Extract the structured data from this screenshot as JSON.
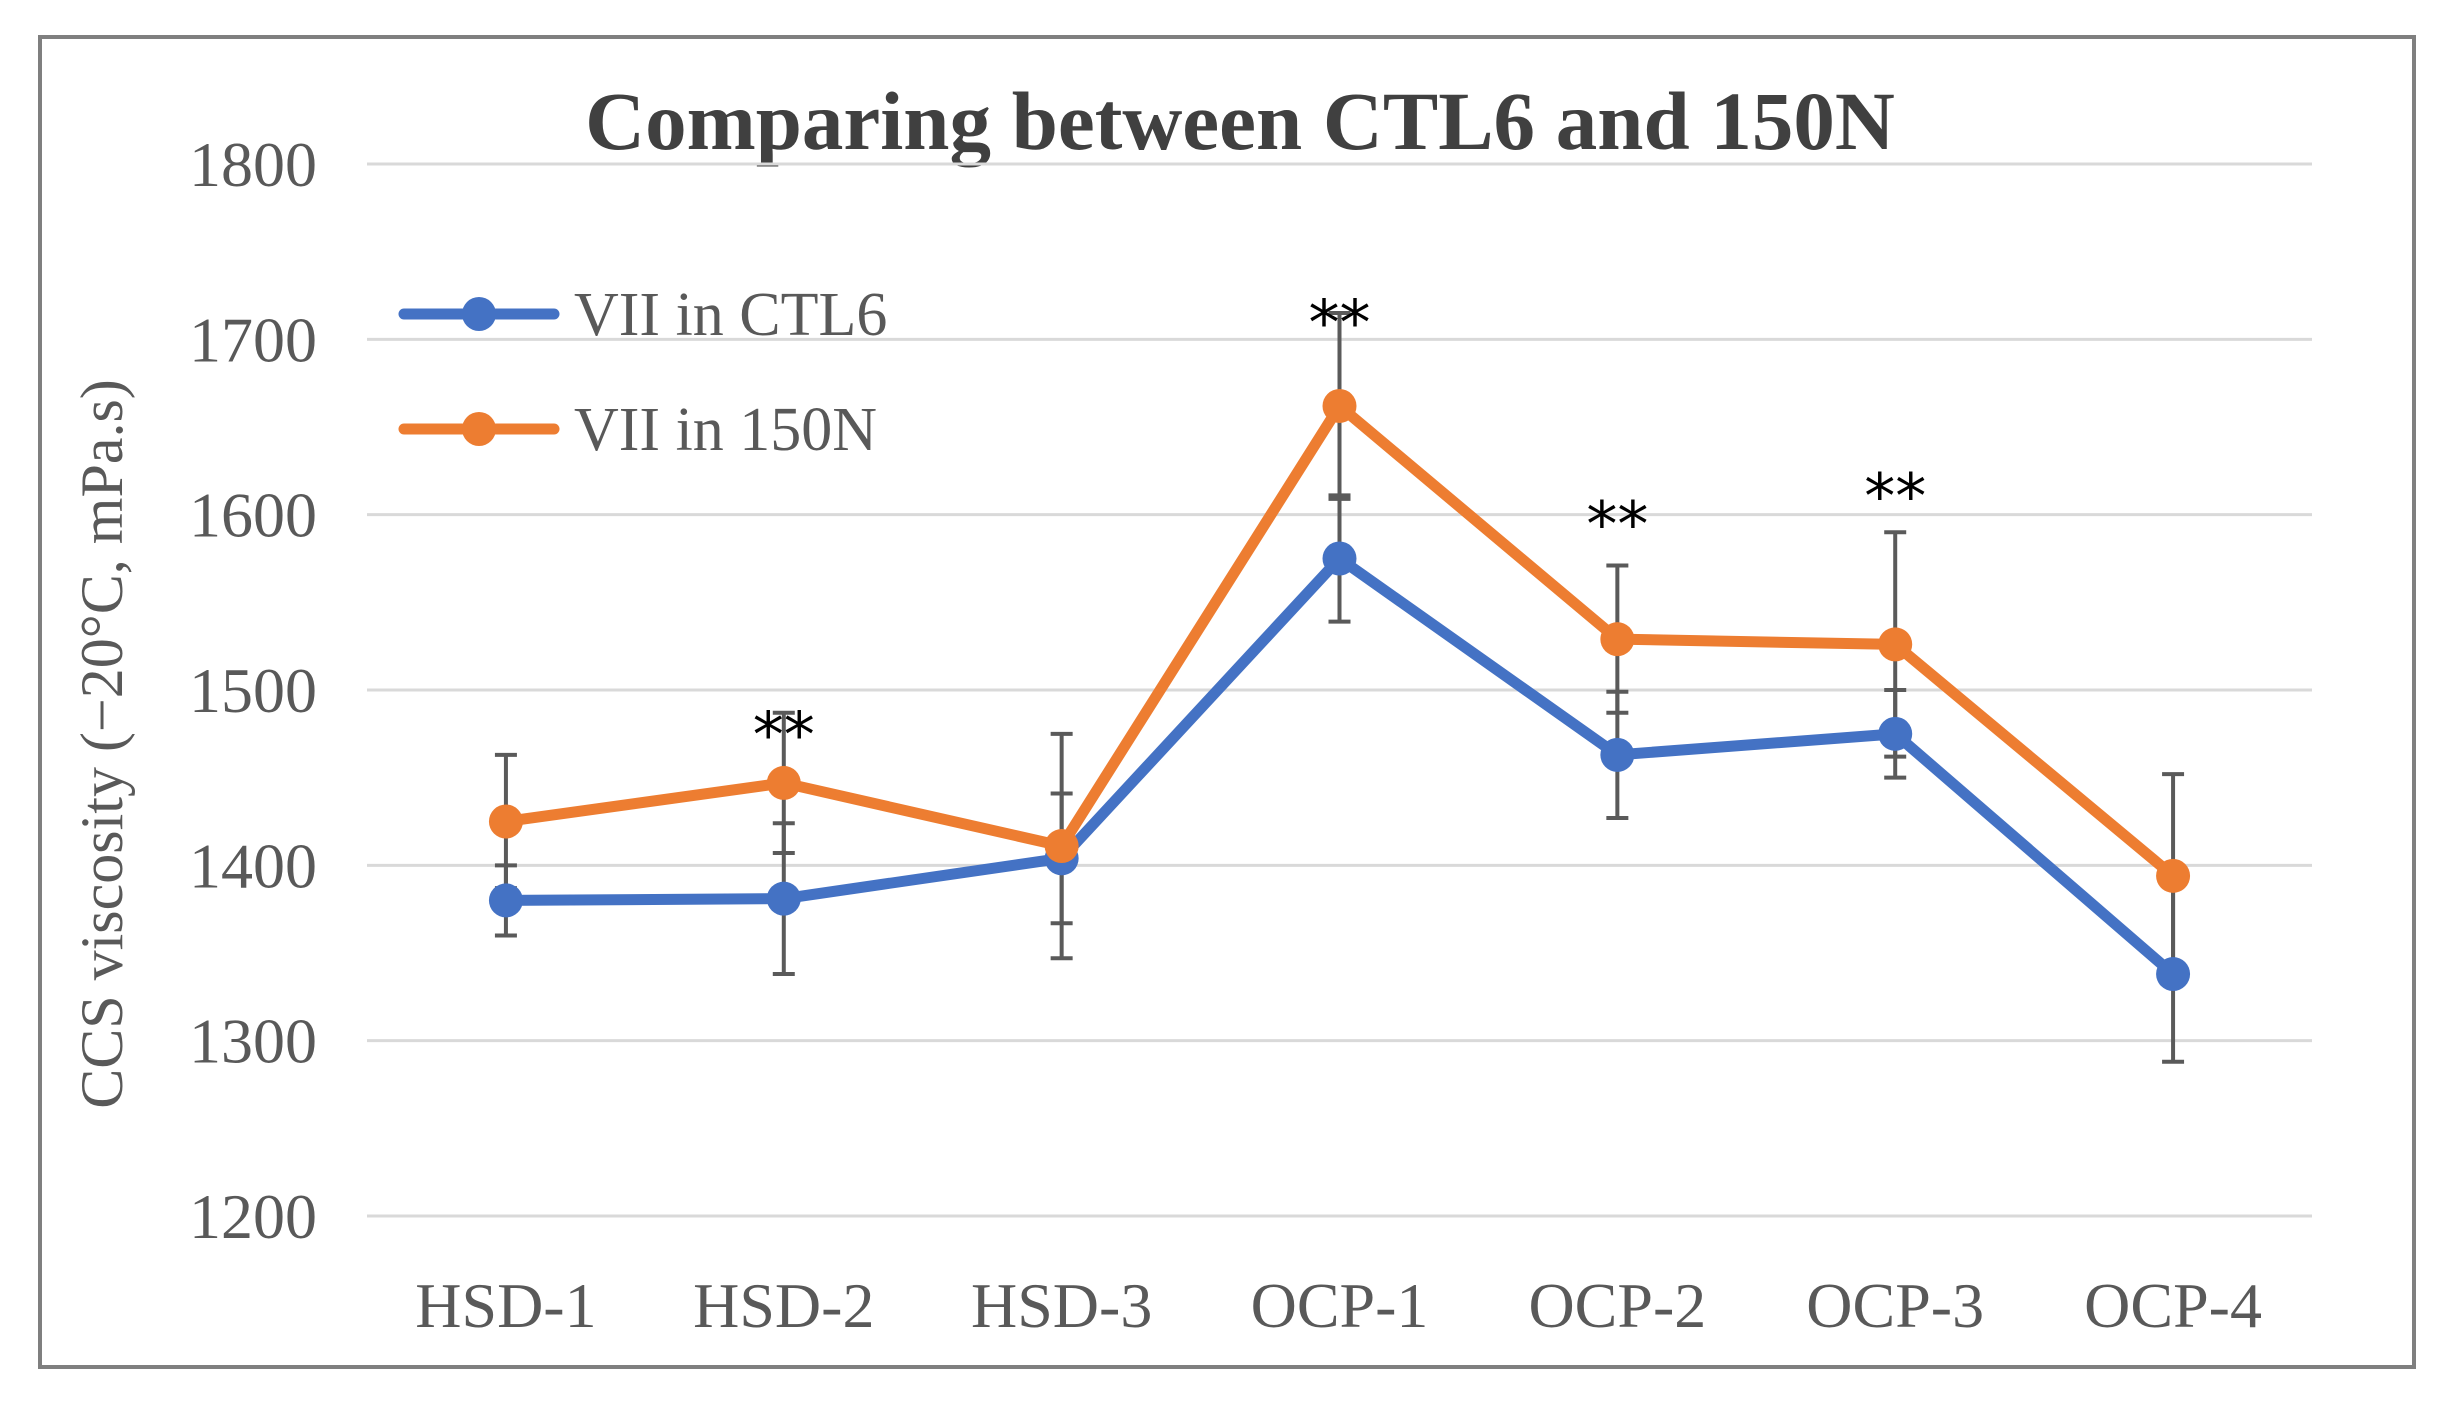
{
  "chart_data": {
    "type": "line",
    "title": "Comparing between CTL6 and 150N",
    "xlabel": "",
    "ylabel": "CCS viscosity (−20°C, mPa.s)",
    "ylim": [
      1200,
      1800
    ],
    "yticks": [
      1200,
      1300,
      1400,
      1500,
      1600,
      1700,
      1800
    ],
    "grid": true,
    "legend_position": "top-left",
    "categories": [
      "HSD-1",
      "HSD-2",
      "HSD-3",
      "OCP-1",
      "OCP-2",
      "OCP-3",
      "OCP-4"
    ],
    "series": [
      {
        "name": "VII in CTL6",
        "color": "#4472c4",
        "values": [
          1380,
          1381,
          1404,
          1575,
          1463,
          1475,
          1338
        ],
        "error": [
          20,
          43,
          37,
          36,
          36,
          25,
          50
        ]
      },
      {
        "name": "VII in 150N",
        "color": "#ed7d31",
        "values": [
          1425,
          1447,
          1411,
          1662,
          1529,
          1526,
          1394
        ],
        "error": [
          38,
          40,
          64,
          53,
          42,
          64,
          58
        ]
      }
    ],
    "annotations": [
      {
        "category": "HSD-2",
        "text": "**",
        "y": 1462
      },
      {
        "category": "OCP-1",
        "text": "**",
        "y": 1697
      },
      {
        "category": "OCP-2",
        "text": "**",
        "y": 1582
      },
      {
        "category": "OCP-3",
        "text": "**",
        "y": 1598
      }
    ]
  }
}
